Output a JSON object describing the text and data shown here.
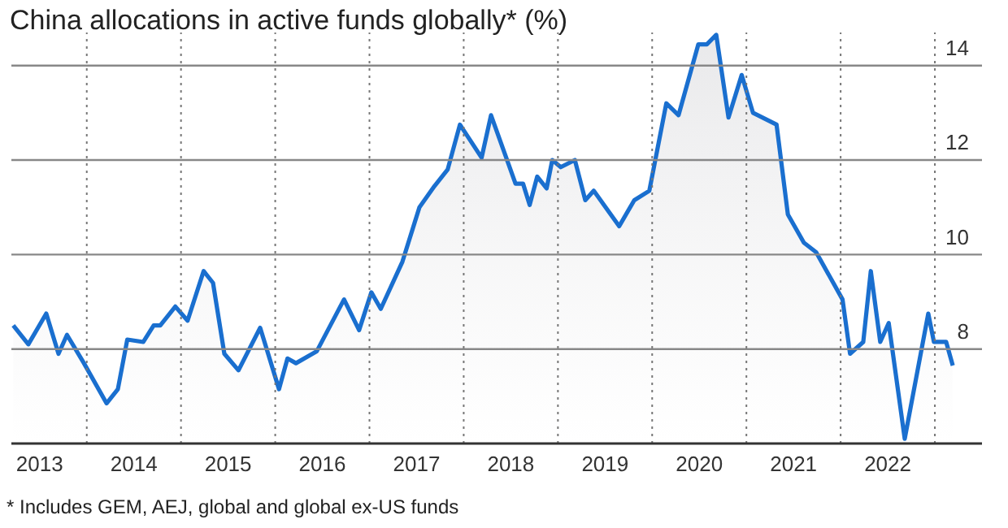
{
  "chart_data": {
    "type": "area",
    "title": "China allocations in active funds globally* (%)",
    "annotations": [
      "* Includes GEM, AEJ, global and global ex-US funds"
    ],
    "x": [
      2013.22,
      2013.38,
      2013.57,
      2013.7,
      2013.79,
      2013.97,
      2014.21,
      2014.33,
      2014.43,
      2014.6,
      2014.71,
      2014.78,
      2014.94,
      2015.07,
      2015.24,
      2015.34,
      2015.46,
      2015.61,
      2015.84,
      2016.04,
      2016.13,
      2016.22,
      2016.44,
      2016.73,
      2016.89,
      2017.02,
      2017.12,
      2017.35,
      2017.53,
      2017.69,
      2017.83,
      2017.96,
      2018.19,
      2018.29,
      2018.55,
      2018.63,
      2018.7,
      2018.78,
      2018.88,
      2018.94,
      2019.03,
      2019.18,
      2019.29,
      2019.38,
      2019.65,
      2019.81,
      2019.97,
      2020.15,
      2020.28,
      2020.49,
      2020.58,
      2020.68,
      2020.81,
      2020.95,
      2021.07,
      2021.32,
      2021.44,
      2021.61,
      2021.74,
      2022.02,
      2022.1,
      2022.24,
      2022.32,
      2022.42,
      2022.51,
      2022.68,
      2022.93,
      2022.99,
      2023.12,
      2023.19
    ],
    "values": [
      8.5,
      8.1,
      8.75,
      7.9,
      8.3,
      7.7,
      6.85,
      7.15,
      8.2,
      8.15,
      8.5,
      8.5,
      8.9,
      8.6,
      9.65,
      9.4,
      7.9,
      7.55,
      8.45,
      7.15,
      7.8,
      7.7,
      7.95,
      9.05,
      8.4,
      9.2,
      8.85,
      9.85,
      11.0,
      11.45,
      11.8,
      12.75,
      12.05,
      12.95,
      11.5,
      11.5,
      11.05,
      11.65,
      11.4,
      12.0,
      11.85,
      12.0,
      11.15,
      11.35,
      10.6,
      11.15,
      11.35,
      13.2,
      12.95,
      14.45,
      14.45,
      14.65,
      12.9,
      13.8,
      13.0,
      12.75,
      10.85,
      10.25,
      10.05,
      9.05,
      7.9,
      8.15,
      9.65,
      8.15,
      8.55,
      6.1,
      8.75,
      8.15,
      8.15,
      7.65
    ],
    "color": "#1a6fcf",
    "xlim": [
      2013.2,
      2023.5
    ],
    "xticks": [
      {
        "value": 2013.5,
        "label": "2013"
      },
      {
        "value": 2014,
        "label": null
      },
      {
        "value": 2014.5,
        "label": "2014"
      },
      {
        "value": 2015,
        "label": null
      },
      {
        "value": 2015.5,
        "label": "2015"
      },
      {
        "value": 2016,
        "label": null
      },
      {
        "value": 2016.5,
        "label": "2016"
      },
      {
        "value": 2017,
        "label": null
      },
      {
        "value": 2017.5,
        "label": "2017"
      },
      {
        "value": 2018,
        "label": null
      },
      {
        "value": 2018.5,
        "label": "2018"
      },
      {
        "value": 2019,
        "label": null
      },
      {
        "value": 2019.5,
        "label": "2019"
      },
      {
        "value": 2020,
        "label": null
      },
      {
        "value": 2020.5,
        "label": "2020"
      },
      {
        "value": 2021,
        "label": null
      },
      {
        "value": 2021.5,
        "label": "2021"
      },
      {
        "value": 2022,
        "label": null
      },
      {
        "value": 2022.5,
        "label": "2022"
      },
      {
        "value": 2023,
        "label": null
      }
    ],
    "ylim": [
      6,
      14.7
    ],
    "yticks": [
      8,
      10,
      12,
      14
    ],
    "grid": true
  }
}
